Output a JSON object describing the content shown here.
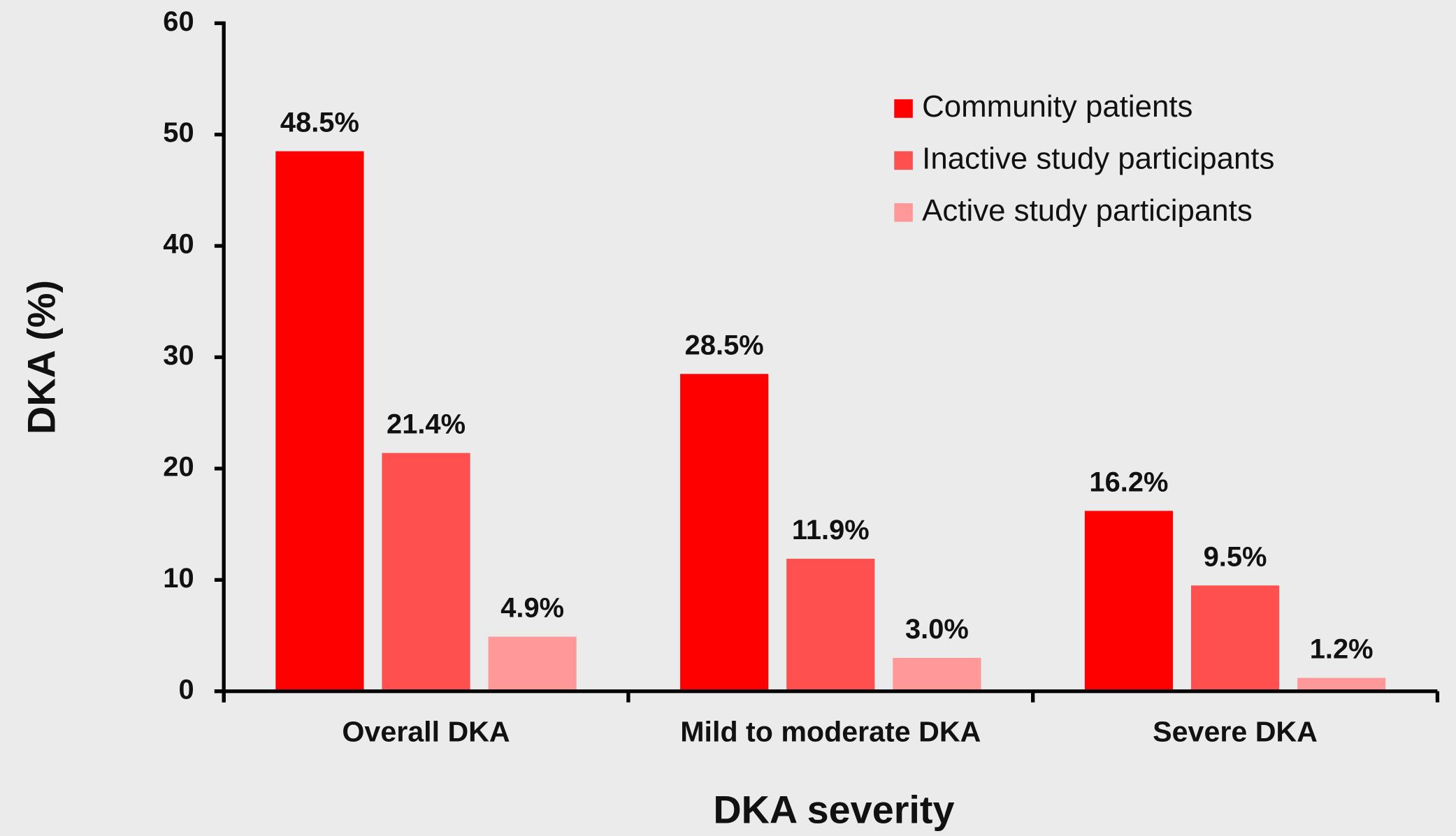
{
  "chart_data": {
    "type": "bar",
    "x_label": "DKA severity",
    "y_label": "DKA (%)",
    "categories": [
      "Overall DKA",
      "Mild to moderate DKA",
      "Severe DKA"
    ],
    "series": [
      {
        "name": "Community patients",
        "color": "#ff0000",
        "values": [
          48.5,
          28.5,
          16.2
        ],
        "value_labels": [
          "48.5%",
          "28.5%",
          "16.2%"
        ]
      },
      {
        "name": "Inactive study participants",
        "color": "#ff5050",
        "values": [
          21.4,
          11.9,
          9.5
        ],
        "value_labels": [
          "21.4%",
          "11.9%",
          "9.5%"
        ]
      },
      {
        "name": "Active study participants",
        "color": "#ff9999",
        "values": [
          4.9,
          3.0,
          1.2
        ],
        "value_labels": [
          "4.9%",
          "3.0%",
          "1.2%"
        ]
      }
    ],
    "ylim": [
      0,
      60
    ],
    "yticks": [
      0,
      10,
      20,
      30,
      40,
      50,
      60
    ],
    "legend": "upper right"
  }
}
